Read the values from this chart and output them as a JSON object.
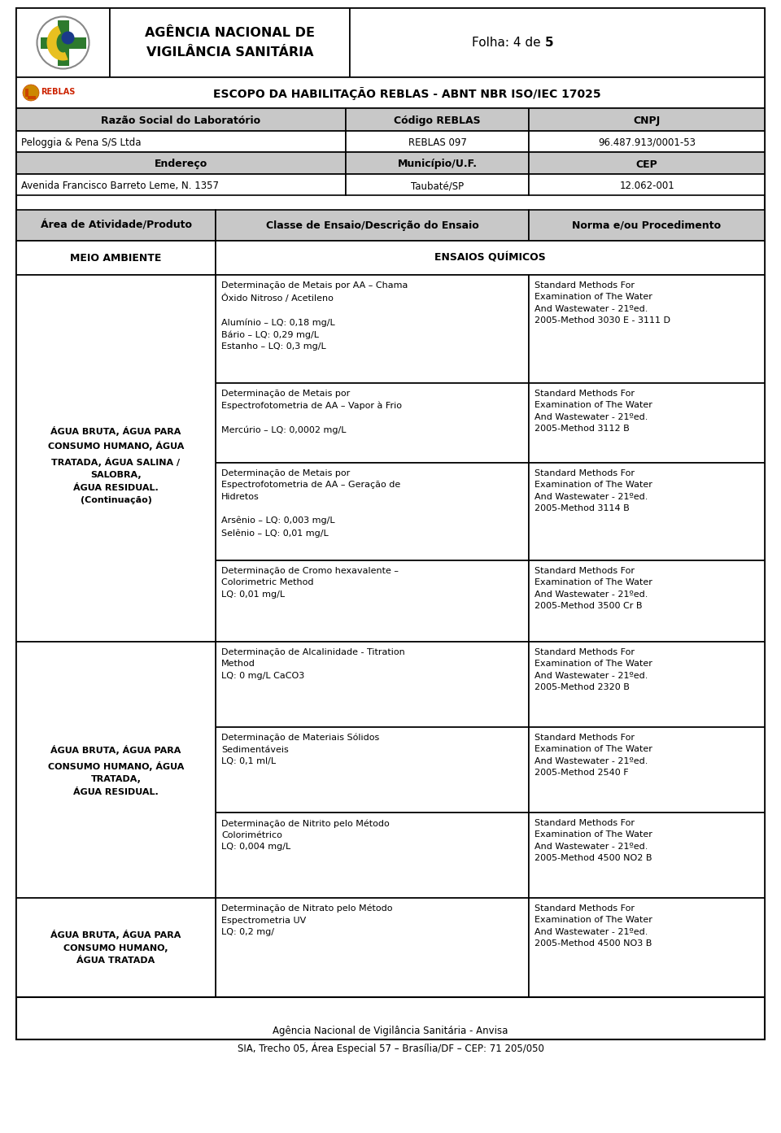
{
  "page_width": 9.6,
  "page_height": 13.93,
  "bg_color": "#ffffff",
  "header_bg": "#c8c8c8",
  "agency_name_line1": "AGÊNCIA NACIONAL DE",
  "agency_name_line2": "VIGILÂNCIA SANITÁRIA",
  "folha_text_normal": "Folha: 4 de ",
  "folha_text_bold": "5",
  "escopo_text": "ESCOPO DA HABILITAÇÃO REBLAS - ABNT NBR ISO/IEC 17025",
  "col1_header": "Razão Social do Laboratório",
  "col2_header": "Código REBLAS",
  "col3_header": "CNPJ",
  "lab_name": "Peloggia & Pena S/S Ltda",
  "reblas_code": "REBLAS 097",
  "cnpj": "96.487.913/0001-53",
  "col1_header2": "Endereço",
  "col2_header2": "Município/U.F.",
  "col3_header2": "CEP",
  "address": "Avenida Francisco Barreto Leme, N. 1357",
  "municipio": "Taubaté/SP",
  "cep": "12.062-001",
  "table_col1": "Área de Atividade/Produto",
  "table_col2": "Classe de Ensaio/Descrição do Ensaio",
  "table_col3": "Norma e/ou Procedimento",
  "meio_ambiente": "MEIO AMBIENTE",
  "ensaios_quimicos": "ENSAIOS QUÍMICOS",
  "row1_col2_a": "Determinação de Metais por AA – Chama\nÓxido Nitroso / Acetileno\n\nAlumínio – LQ: 0,18 mg/L\nBário – LQ: 0,29 mg/L\nEstanho – LQ: 0,3 mg/L",
  "row1_col3_a": "Standard Methods For\nExamination of The Water\nAnd Wastewater - 21ºed.\n2005-Method 3030 E - 3111 D",
  "row1_col2_b": "Determinação de Metais por\nEspectrofotometria de AA – Vapor à Frio\n\nMercúrio – LQ: 0,0002 mg/L",
  "row1_col3_b": "Standard Methods For\nExamination of The Water\nAnd Wastewater - 21ºed.\n2005-Method 3112 B",
  "row1_col2_c": "Determinação de Metais por\nEspectrofotometria de AA – Geração de\nHidretos\n\nArsênio – LQ: 0,003 mg/L\nSelênio – LQ: 0,01 mg/L",
  "row1_col3_c": "Standard Methods For\nExamination of The Water\nAnd Wastewater - 21ºed.\n2005-Method 3114 B",
  "row1_col2_d": "Determinação de Cromo hexavalente –\nColorimetric Method\nLQ: 0,01 mg/L",
  "row1_col3_d": "Standard Methods For\nExamination of The Water\nAnd Wastewater - 21ºed.\n2005-Method 3500 Cr B",
  "row1_col1_text": "ÁGUA BRUTA, ÁGUA PARA\nCONSUMO HUMANO, ÁGUA\nTRATADA, ÁGUA SALINA /\nSALOBRA,\nÁGUA RESIDUAL.\n(Continuação)",
  "row2_col1_text": "ÁGUA BRUTA, ÁGUA PARA\nCONSUMO HUMANO, ÁGUA\nTRATADA,\nÁGUA RESIDUAL.",
  "row2_col2_a": "Determinação de Alcalinidade - Titration\nMethod\nLQ: 0 mg/L CaCO3",
  "row2_col3_a": "Standard Methods For\nExamination of The Water\nAnd Wastewater - 21ºed.\n2005-Method 2320 B",
  "row2_col2_b": "Determinação de Materiais Sólidos\nSedimentáveis\nLQ: 0,1 ml/L",
  "row2_col3_b": "Standard Methods For\nExamination of The Water\nAnd Wastewater - 21ºed.\n2005-Method 2540 F",
  "row2_col2_c": "Determinação de Nitrito pelo Método\nColorimétrico\nLQ: 0,004 mg/L",
  "row2_col3_c": "Standard Methods For\nExamination of The Water\nAnd Wastewater - 21ºed.\n2005-Method 4500 NO2 B",
  "row3_col1_text": "ÁGUA BRUTA, ÁGUA PARA\nCONSUMO HUMANO,\nÁGUA TRATADA",
  "row3_col2_a": "Determinação de Nitrato pelo Método\nEspectrometria UV\nLQ: 0,2 mg/",
  "row3_col3_a": "Standard Methods For\nExamination of The Water\nAnd Wastewater - 21ºed.\n2005-Method 4500 NO3 B",
  "footer_line1": "Agência Nacional de Vigilância Sanitária - Anvisa",
  "footer_line2": "SIA, Trecho 05, Área Especial 57 – Brasília/DF – CEP: 71 205/050"
}
